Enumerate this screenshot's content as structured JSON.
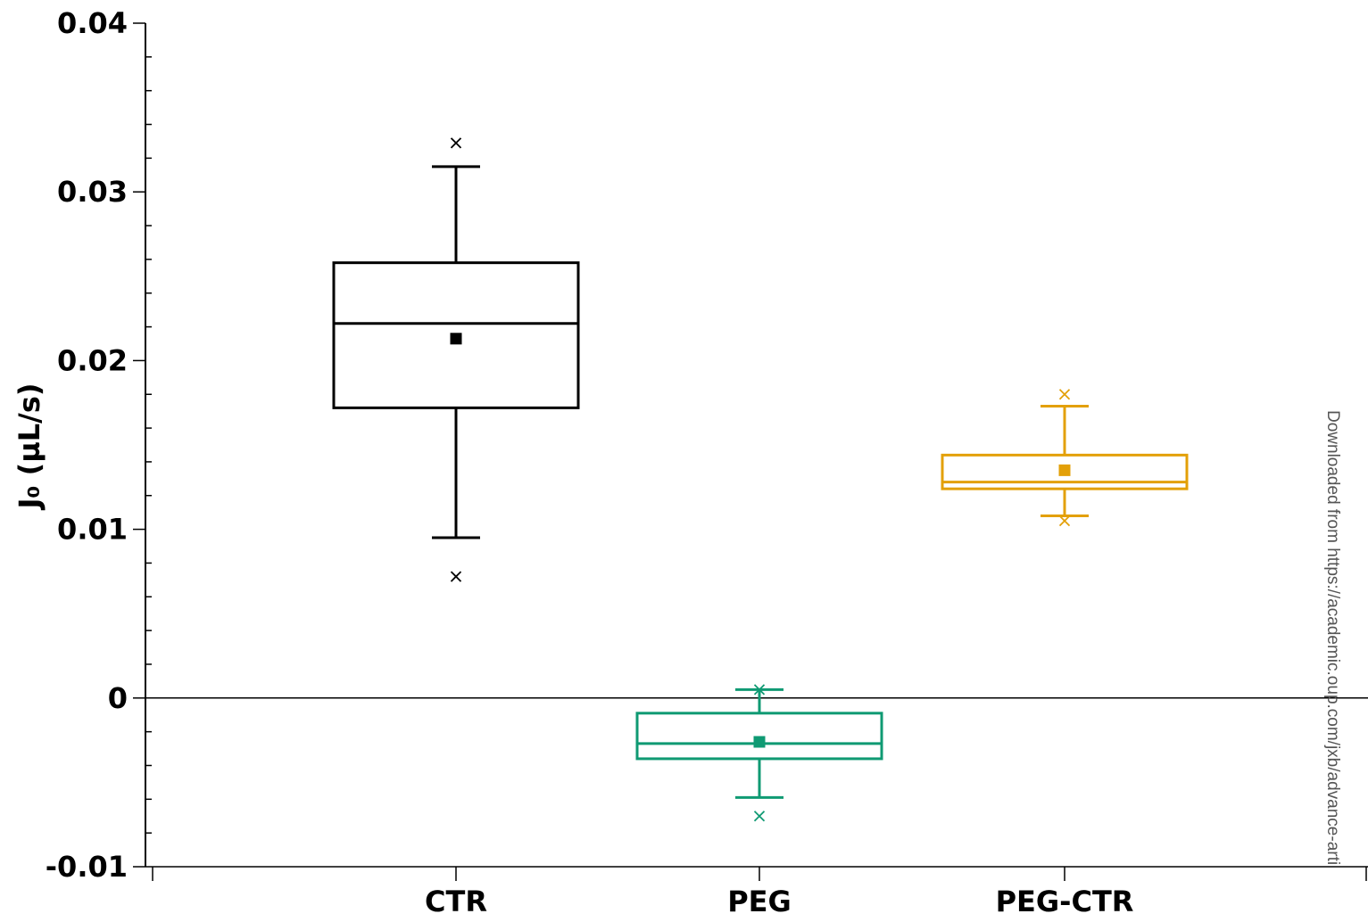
{
  "chart_data": {
    "type": "box",
    "ylabel": "J₀ (µL/s)",
    "ylim": [
      -0.01,
      0.04
    ],
    "yticks": [
      "0.04",
      "0.03",
      "0.02",
      "0.01",
      "0",
      "-0.01"
    ],
    "ytick_values": [
      0.04,
      0.03,
      0.02,
      0.01,
      0,
      -0.01
    ],
    "zero_line": true,
    "grid": false,
    "categories": [
      "CTR",
      "PEG",
      "PEG-CTR"
    ],
    "series": [
      {
        "category": "CTR",
        "color": "#000000",
        "min": 0.0072,
        "whisker_low": 0.0095,
        "q1": 0.0172,
        "median": 0.0222,
        "mean": 0.0213,
        "q3": 0.0258,
        "whisker_high": 0.0315,
        "max": 0.0329
      },
      {
        "category": "PEG",
        "color": "#0f9a73",
        "min": -0.007,
        "whisker_low": -0.0059,
        "q1": -0.0036,
        "median": -0.0027,
        "mean": -0.0026,
        "q3": -0.0009,
        "whisker_high": 0.0005,
        "max": 0.0005
      },
      {
        "category": "PEG-CTR",
        "color": "#e3a008",
        "min": 0.0105,
        "whisker_low": 0.0108,
        "q1": 0.0124,
        "median": 0.0128,
        "mean": 0.0135,
        "q3": 0.0144,
        "whisker_high": 0.0173,
        "max": 0.018
      }
    ]
  },
  "watermark": "Downloaded from https://academic.oup.com/jxb/advance-arti"
}
